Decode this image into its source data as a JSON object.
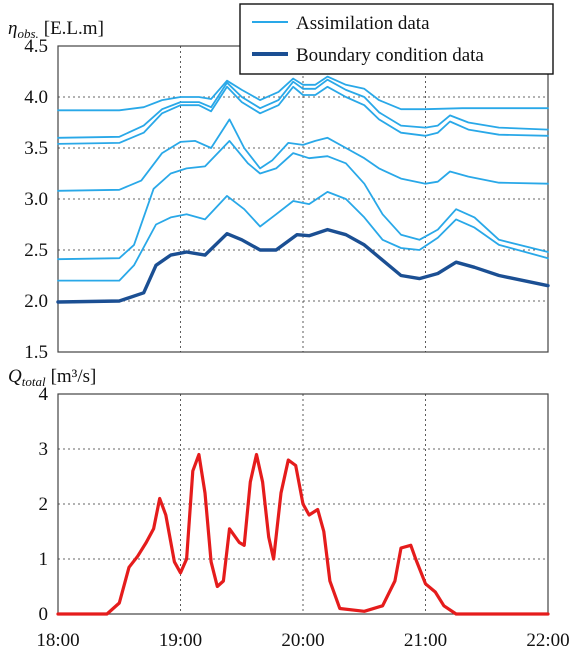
{
  "chart_data": [
    {
      "type": "line",
      "ylabel_symbol": "η",
      "ylabel_subscript": "obs.",
      "ylabel_unit": "[E.L.m]",
      "ylim": [
        1.5,
        4.5
      ],
      "yticks": [
        "4.5",
        "4.0",
        "3.5",
        "3.0",
        "2.5",
        "2.0",
        "1.5"
      ],
      "xlim": [
        18,
        22
      ],
      "grid": true,
      "legend_position": "top-right",
      "legend": [
        {
          "label": "Assimilation data",
          "color": "#29a8e8"
        },
        {
          "label": "Boundary condition data",
          "color": "#1b4f93"
        }
      ],
      "series": [
        {
          "group": "assimilation",
          "color": "#29a8e8",
          "points": [
            [
              18.0,
              3.87
            ],
            [
              18.5,
              3.87
            ],
            [
              18.7,
              3.9
            ],
            [
              18.85,
              3.97
            ],
            [
              19.0,
              4.0
            ],
            [
              19.15,
              4.0
            ],
            [
              19.25,
              3.98
            ],
            [
              19.38,
              4.16
            ],
            [
              19.5,
              4.07
            ],
            [
              19.65,
              3.97
            ],
            [
              19.8,
              4.05
            ],
            [
              19.92,
              4.18
            ],
            [
              20.0,
              4.12
            ],
            [
              20.1,
              4.12
            ],
            [
              20.2,
              4.2
            ],
            [
              20.35,
              4.12
            ],
            [
              20.5,
              4.08
            ],
            [
              20.62,
              3.97
            ],
            [
              20.8,
              3.88
            ],
            [
              21.0,
              3.88
            ],
            [
              21.3,
              3.89
            ],
            [
              21.6,
              3.89
            ],
            [
              22.0,
              3.89
            ]
          ]
        },
        {
          "group": "assimilation",
          "color": "#29a8e8",
          "points": [
            [
              18.0,
              3.6
            ],
            [
              18.5,
              3.61
            ],
            [
              18.7,
              3.72
            ],
            [
              18.85,
              3.88
            ],
            [
              19.0,
              3.95
            ],
            [
              19.15,
              3.95
            ],
            [
              19.25,
              3.9
            ],
            [
              19.38,
              4.14
            ],
            [
              19.5,
              4.0
            ],
            [
              19.65,
              3.89
            ],
            [
              19.8,
              3.97
            ],
            [
              19.92,
              4.15
            ],
            [
              20.0,
              4.08
            ],
            [
              20.1,
              4.08
            ],
            [
              20.2,
              4.17
            ],
            [
              20.35,
              4.07
            ],
            [
              20.5,
              4.0
            ],
            [
              20.62,
              3.85
            ],
            [
              20.8,
              3.72
            ],
            [
              21.0,
              3.7
            ],
            [
              21.1,
              3.72
            ],
            [
              21.2,
              3.82
            ],
            [
              21.35,
              3.75
            ],
            [
              21.6,
              3.7
            ],
            [
              22.0,
              3.68
            ]
          ]
        },
        {
          "group": "assimilation",
          "color": "#29a8e8",
          "points": [
            [
              18.0,
              3.54
            ],
            [
              18.5,
              3.55
            ],
            [
              18.7,
              3.65
            ],
            [
              18.85,
              3.84
            ],
            [
              19.0,
              3.92
            ],
            [
              19.15,
              3.92
            ],
            [
              19.25,
              3.86
            ],
            [
              19.38,
              4.1
            ],
            [
              19.5,
              3.95
            ],
            [
              19.65,
              3.84
            ],
            [
              19.8,
              3.92
            ],
            [
              19.92,
              4.1
            ],
            [
              20.0,
              4.02
            ],
            [
              20.1,
              4.02
            ],
            [
              20.2,
              4.1
            ],
            [
              20.35,
              4.0
            ],
            [
              20.5,
              3.92
            ],
            [
              20.62,
              3.78
            ],
            [
              20.8,
              3.65
            ],
            [
              21.0,
              3.62
            ],
            [
              21.1,
              3.65
            ],
            [
              21.2,
              3.76
            ],
            [
              21.35,
              3.68
            ],
            [
              21.6,
              3.63
            ],
            [
              22.0,
              3.62
            ]
          ]
        },
        {
          "group": "assimilation",
          "color": "#29a8e8",
          "points": [
            [
              18.0,
              3.08
            ],
            [
              18.5,
              3.09
            ],
            [
              18.68,
              3.18
            ],
            [
              18.85,
              3.45
            ],
            [
              19.0,
              3.56
            ],
            [
              19.12,
              3.57
            ],
            [
              19.25,
              3.5
            ],
            [
              19.4,
              3.78
            ],
            [
              19.52,
              3.5
            ],
            [
              19.65,
              3.3
            ],
            [
              19.75,
              3.38
            ],
            [
              19.88,
              3.55
            ],
            [
              20.0,
              3.53
            ],
            [
              20.1,
              3.57
            ],
            [
              20.2,
              3.6
            ],
            [
              20.35,
              3.5
            ],
            [
              20.5,
              3.4
            ],
            [
              20.62,
              3.3
            ],
            [
              20.8,
              3.2
            ],
            [
              21.0,
              3.15
            ],
            [
              21.1,
              3.17
            ],
            [
              21.2,
              3.27
            ],
            [
              21.35,
              3.22
            ],
            [
              21.6,
              3.16
            ],
            [
              22.0,
              3.15
            ]
          ]
        },
        {
          "group": "assimilation",
          "color": "#29a8e8",
          "points": [
            [
              18.0,
              2.41
            ],
            [
              18.5,
              2.42
            ],
            [
              18.62,
              2.55
            ],
            [
              18.78,
              3.1
            ],
            [
              18.92,
              3.25
            ],
            [
              19.05,
              3.3
            ],
            [
              19.2,
              3.32
            ],
            [
              19.4,
              3.57
            ],
            [
              19.55,
              3.35
            ],
            [
              19.65,
              3.25
            ],
            [
              19.78,
              3.3
            ],
            [
              19.92,
              3.45
            ],
            [
              20.05,
              3.4
            ],
            [
              20.2,
              3.42
            ],
            [
              20.35,
              3.35
            ],
            [
              20.5,
              3.15
            ],
            [
              20.65,
              2.85
            ],
            [
              20.8,
              2.65
            ],
            [
              20.95,
              2.6
            ],
            [
              21.1,
              2.7
            ],
            [
              21.25,
              2.9
            ],
            [
              21.4,
              2.82
            ],
            [
              21.6,
              2.6
            ],
            [
              22.0,
              2.48
            ]
          ]
        },
        {
          "group": "assimilation",
          "color": "#29a8e8",
          "points": [
            [
              18.0,
              2.2
            ],
            [
              18.5,
              2.2
            ],
            [
              18.62,
              2.35
            ],
            [
              18.8,
              2.75
            ],
            [
              18.92,
              2.82
            ],
            [
              19.05,
              2.85
            ],
            [
              19.2,
              2.8
            ],
            [
              19.38,
              3.03
            ],
            [
              19.52,
              2.9
            ],
            [
              19.65,
              2.73
            ],
            [
              19.78,
              2.85
            ],
            [
              19.92,
              2.98
            ],
            [
              20.05,
              2.95
            ],
            [
              20.2,
              3.07
            ],
            [
              20.35,
              3.0
            ],
            [
              20.5,
              2.82
            ],
            [
              20.65,
              2.6
            ],
            [
              20.8,
              2.52
            ],
            [
              20.95,
              2.5
            ],
            [
              21.1,
              2.62
            ],
            [
              21.25,
              2.8
            ],
            [
              21.4,
              2.72
            ],
            [
              21.6,
              2.55
            ],
            [
              22.0,
              2.42
            ]
          ]
        },
        {
          "group": "boundary",
          "color": "#1b4f93",
          "points": [
            [
              18.0,
              1.99
            ],
            [
              18.5,
              2.0
            ],
            [
              18.7,
              2.08
            ],
            [
              18.8,
              2.35
            ],
            [
              18.92,
              2.45
            ],
            [
              19.05,
              2.48
            ],
            [
              19.2,
              2.45
            ],
            [
              19.38,
              2.66
            ],
            [
              19.5,
              2.6
            ],
            [
              19.65,
              2.5
            ],
            [
              19.78,
              2.5
            ],
            [
              19.95,
              2.65
            ],
            [
              20.05,
              2.64
            ],
            [
              20.2,
              2.7
            ],
            [
              20.35,
              2.65
            ],
            [
              20.5,
              2.55
            ],
            [
              20.65,
              2.4
            ],
            [
              20.8,
              2.25
            ],
            [
              20.95,
              2.22
            ],
            [
              21.1,
              2.27
            ],
            [
              21.25,
              2.38
            ],
            [
              21.4,
              2.33
            ],
            [
              21.6,
              2.25
            ],
            [
              22.0,
              2.15
            ]
          ]
        }
      ]
    },
    {
      "type": "line",
      "ylabel_symbol": "Q",
      "ylabel_subscript": "total",
      "ylabel_unit": "[m³/s]",
      "ylim": [
        0,
        4
      ],
      "yticks": [
        "4",
        "3",
        "2",
        "1",
        "0"
      ],
      "xlim": [
        18,
        22
      ],
      "xticks": [
        "18:00",
        "19:00",
        "20:00",
        "21:00",
        "22:00"
      ],
      "grid": true,
      "series": [
        {
          "color": "#e51c1c",
          "points": [
            [
              18.0,
              0.0
            ],
            [
              18.4,
              0.0
            ],
            [
              18.5,
              0.2
            ],
            [
              18.58,
              0.85
            ],
            [
              18.65,
              1.05
            ],
            [
              18.72,
              1.3
            ],
            [
              18.78,
              1.55
            ],
            [
              18.83,
              2.1
            ],
            [
              18.88,
              1.8
            ],
            [
              18.95,
              0.95
            ],
            [
              19.0,
              0.75
            ],
            [
              19.05,
              1.0
            ],
            [
              19.1,
              2.6
            ],
            [
              19.15,
              2.9
            ],
            [
              19.2,
              2.2
            ],
            [
              19.25,
              0.95
            ],
            [
              19.3,
              0.5
            ],
            [
              19.35,
              0.6
            ],
            [
              19.4,
              1.55
            ],
            [
              19.48,
              1.3
            ],
            [
              19.52,
              1.25
            ],
            [
              19.57,
              2.4
            ],
            [
              19.62,
              2.9
            ],
            [
              19.67,
              2.4
            ],
            [
              19.72,
              1.4
            ],
            [
              19.76,
              1.0
            ],
            [
              19.82,
              2.2
            ],
            [
              19.88,
              2.8
            ],
            [
              19.94,
              2.7
            ],
            [
              20.0,
              2.0
            ],
            [
              20.05,
              1.8
            ],
            [
              20.12,
              1.9
            ],
            [
              20.17,
              1.5
            ],
            [
              20.22,
              0.6
            ],
            [
              20.3,
              0.1
            ],
            [
              20.5,
              0.05
            ],
            [
              20.65,
              0.15
            ],
            [
              20.75,
              0.6
            ],
            [
              20.8,
              1.2
            ],
            [
              20.88,
              1.25
            ],
            [
              20.92,
              1.0
            ],
            [
              21.0,
              0.55
            ],
            [
              21.08,
              0.4
            ],
            [
              21.15,
              0.15
            ],
            [
              21.25,
              0.0
            ],
            [
              22.0,
              0.0
            ]
          ]
        }
      ]
    }
  ]
}
